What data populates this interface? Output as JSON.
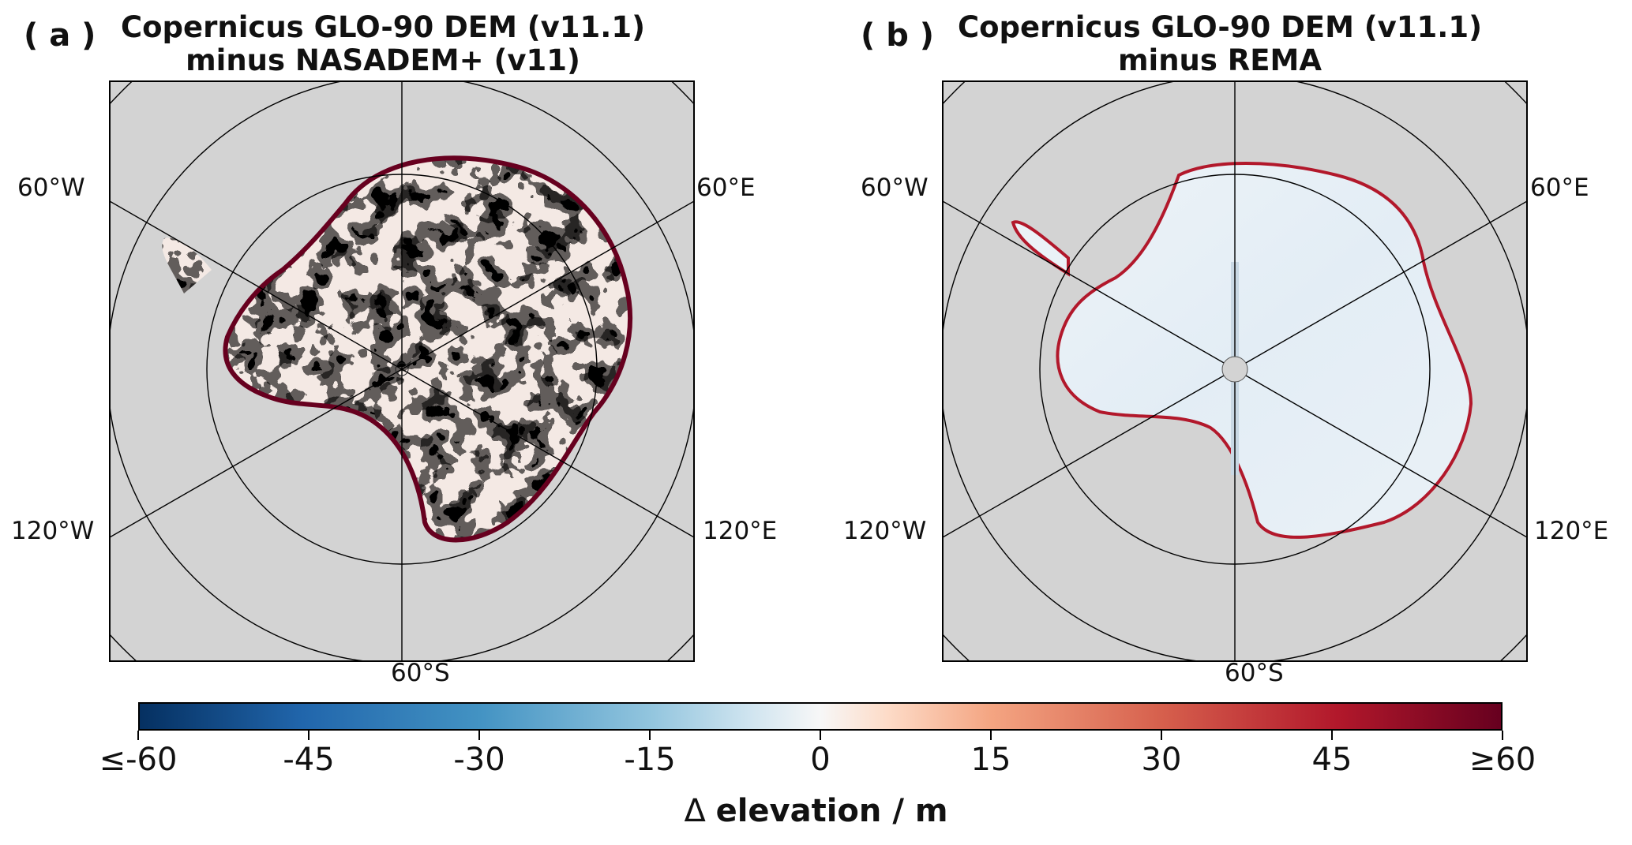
{
  "panels": [
    {
      "label": "( a )",
      "title_line1": "Copernicus GLO-90 DEM (v11.1)",
      "title_line2": "minus NASADEM+ (v11)",
      "lon_labels": {
        "w60": "60°W",
        "e60": "60°E",
        "w120": "120°W",
        "e120": "120°E",
        "s60": "60°S"
      }
    },
    {
      "label": "( b )",
      "title_line1": "Copernicus GLO-90 DEM (v11.1)",
      "title_line2": "minus REMA",
      "lon_labels": {
        "w60": "60°W",
        "e60": "60°E",
        "w120": "120°W",
        "e120": "120°E",
        "s60": "60°S"
      }
    }
  ],
  "colorbar": {
    "ticks": [
      "≤-60",
      "-45",
      "-30",
      "-15",
      "0",
      "15",
      "30",
      "45",
      "≥60"
    ],
    "label_symbol": "Δ",
    "label_text": "elevation / m",
    "colormap": "RdBu_r",
    "range": [
      -60,
      60
    ]
  },
  "colors": {
    "ocean": "#d3d3d3",
    "grid": "#000000"
  }
}
